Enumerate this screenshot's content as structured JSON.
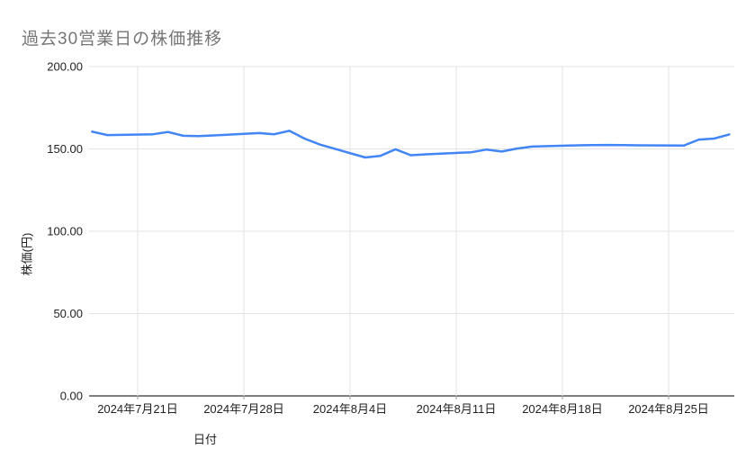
{
  "chart": {
    "title": "過去30営業日の株価推移",
    "x_axis_title": "日付",
    "y_axis_title": "株価(円)",
    "colors": {
      "line": "#4285f4",
      "title_text": "#757575",
      "tick_text": "#222222",
      "gridline": "#e3e3e3",
      "axis_line": "#555555",
      "tick_mark": "#999999",
      "background": "#ffffff"
    }
  },
  "chart_data": {
    "type": "line",
    "title": "過去30営業日の株価推移",
    "xlabel": "日付",
    "ylabel": "株価(円)",
    "ylim": [
      0,
      200
    ],
    "y_ticks": [
      0,
      50,
      100,
      150,
      200
    ],
    "y_tick_labels": [
      "0.00",
      "50.00",
      "100.00",
      "150.00",
      "200.00"
    ],
    "x_tick_dates": [
      "2024-07-21",
      "2024-07-28",
      "2024-08-04",
      "2024-08-11",
      "2024-08-18",
      "2024-08-25"
    ],
    "x_tick_labels": [
      "2024年7月21日",
      "2024年7月28日",
      "2024年8月4日",
      "2024年8月11日",
      "2024年8月18日",
      "2024年8月25日"
    ],
    "grid": true,
    "legend": "none",
    "series": [
      {
        "name": "株価",
        "x": [
          "2024-07-18",
          "2024-07-19",
          "2024-07-22",
          "2024-07-23",
          "2024-07-24",
          "2024-07-25",
          "2024-07-26",
          "2024-07-29",
          "2024-07-30",
          "2024-07-31",
          "2024-08-01",
          "2024-08-02",
          "2024-08-05",
          "2024-08-06",
          "2024-08-07",
          "2024-08-08",
          "2024-08-09",
          "2024-08-12",
          "2024-08-13",
          "2024-08-14",
          "2024-08-15",
          "2024-08-16",
          "2024-08-19",
          "2024-08-20",
          "2024-08-21",
          "2024-08-22",
          "2024-08-23",
          "2024-08-26",
          "2024-08-27",
          "2024-08-28",
          "2024-08-29"
        ],
        "values": [
          160.5,
          158.4,
          158.9,
          160.3,
          158.0,
          157.8,
          158.2,
          159.6,
          158.9,
          161.0,
          156.3,
          152.7,
          144.8,
          145.8,
          149.8,
          146.2,
          146.7,
          148.0,
          149.6,
          148.4,
          150.2,
          151.4,
          152.2,
          152.3,
          152.4,
          152.3,
          152.2,
          152.0,
          155.7,
          156.3,
          158.8
        ]
      }
    ]
  }
}
